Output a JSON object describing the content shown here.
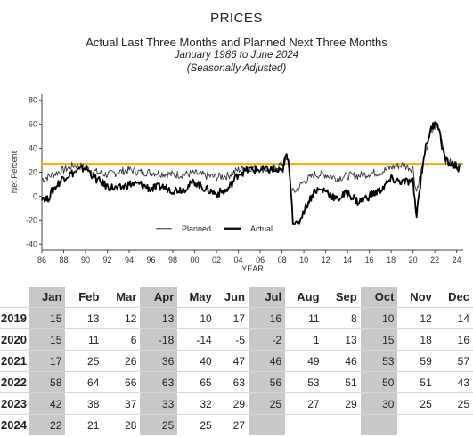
{
  "header": {
    "title": "PRICES",
    "subtitle": "Actual Last Three Months and Planned Next Three Months",
    "range": "January 1986 to June 2024",
    "adjustment": "(Seasonally Adjusted)"
  },
  "chart_data": {
    "type": "line",
    "ylabel": "Net Percent",
    "xlabel": "YEAR",
    "ylim": [
      -45,
      85
    ],
    "xlim": [
      1986,
      2024.6
    ],
    "yticks": [
      -40,
      -20,
      0,
      20,
      40,
      60,
      80
    ],
    "xticks": [
      "86",
      "88",
      "90",
      "92",
      "94",
      "96",
      "98",
      "00",
      "02",
      "04",
      "06",
      "08",
      "10",
      "12",
      "14",
      "16",
      "18",
      "20",
      "22",
      "24"
    ],
    "reference_line": {
      "y": 27,
      "color": "#e8b400"
    },
    "legend": {
      "placement": "bottom-center"
    },
    "series": [
      {
        "name": "Planned",
        "color": "#333333",
        "x": [
          1986,
          1987,
          1988,
          1989,
          1990,
          1991,
          1992,
          1993,
          1994,
          1995,
          1996,
          1997,
          1998,
          1999,
          2000,
          2001,
          2002,
          2003,
          2004,
          2005,
          2006,
          2007,
          2008,
          2008.5,
          2008.9,
          2009.3,
          2010,
          2011,
          2012,
          2013,
          2014,
          2015,
          2016,
          2017,
          2018,
          2019,
          2020,
          2020.3,
          2020.6,
          2021,
          2021.5,
          2022,
          2022.4,
          2022.8,
          2023,
          2023.5,
          2024,
          2024.4
        ],
        "y": [
          14,
          18,
          22,
          26,
          24,
          20,
          18,
          20,
          22,
          20,
          20,
          19,
          18,
          18,
          19,
          17,
          16,
          17,
          22,
          24,
          23,
          22,
          27,
          30,
          3,
          5,
          12,
          18,
          18,
          15,
          17,
          17,
          19,
          20,
          24,
          26,
          23,
          3,
          15,
          30,
          50,
          58,
          56,
          42,
          30,
          28,
          26,
          24
        ]
      },
      {
        "name": "Actual",
        "color": "#000000",
        "x": [
          1986,
          1986.5,
          1987,
          1988,
          1989,
          1990,
          1991,
          1992,
          1993,
          1994,
          1995,
          1996,
          1997,
          1998,
          1999,
          2000,
          2001,
          2002,
          2003,
          2004,
          2005,
          2006,
          2007,
          2008,
          2008.4,
          2008.7,
          2009,
          2009.4,
          2010,
          2011,
          2012,
          2013,
          2014,
          2015,
          2016,
          2017,
          2018,
          2019,
          2020,
          2020.3,
          2020.6,
          2021,
          2021.5,
          2021.9,
          2022.2,
          2022.5,
          2022.8,
          2023,
          2023.5,
          2024,
          2024.4
        ],
        "y": [
          0,
          -3,
          5,
          16,
          20,
          24,
          14,
          8,
          6,
          10,
          10,
          6,
          8,
          5,
          6,
          12,
          6,
          2,
          5,
          19,
          22,
          22,
          22,
          20,
          35,
          22,
          -20,
          -25,
          -12,
          5,
          5,
          -3,
          3,
          -5,
          0,
          5,
          14,
          12,
          12,
          -17,
          5,
          34,
          52,
          60,
          64,
          50,
          36,
          30,
          26,
          25,
          22
        ]
      }
    ]
  },
  "table": {
    "months": [
      "Jan",
      "Feb",
      "Mar",
      "Apr",
      "May",
      "Jun",
      "Jul",
      "Aug",
      "Sep",
      "Oct",
      "Nov",
      "Dec"
    ],
    "rows": [
      {
        "year": "2019",
        "values": [
          "15",
          "13",
          "12",
          "13",
          "10",
          "17",
          "16",
          "11",
          "8",
          "10",
          "12",
          "14"
        ]
      },
      {
        "year": "2020",
        "values": [
          "15",
          "11",
          "6",
          "-18",
          "-14",
          "-5",
          "-2",
          "1",
          "13",
          "15",
          "18",
          "16"
        ]
      },
      {
        "year": "2021",
        "values": [
          "17",
          "25",
          "26",
          "36",
          "40",
          "47",
          "46",
          "49",
          "46",
          "53",
          "59",
          "57"
        ]
      },
      {
        "year": "2022",
        "values": [
          "58",
          "64",
          "66",
          "63",
          "65",
          "63",
          "56",
          "53",
          "51",
          "50",
          "51",
          "43"
        ]
      },
      {
        "year": "2023",
        "values": [
          "42",
          "38",
          "37",
          "33",
          "32",
          "29",
          "25",
          "27",
          "29",
          "30",
          "25",
          "25"
        ]
      },
      {
        "year": "2024",
        "values": [
          "22",
          "21",
          "28",
          "25",
          "25",
          "27",
          "",
          "",
          "",
          "",
          "",
          ""
        ]
      }
    ]
  }
}
